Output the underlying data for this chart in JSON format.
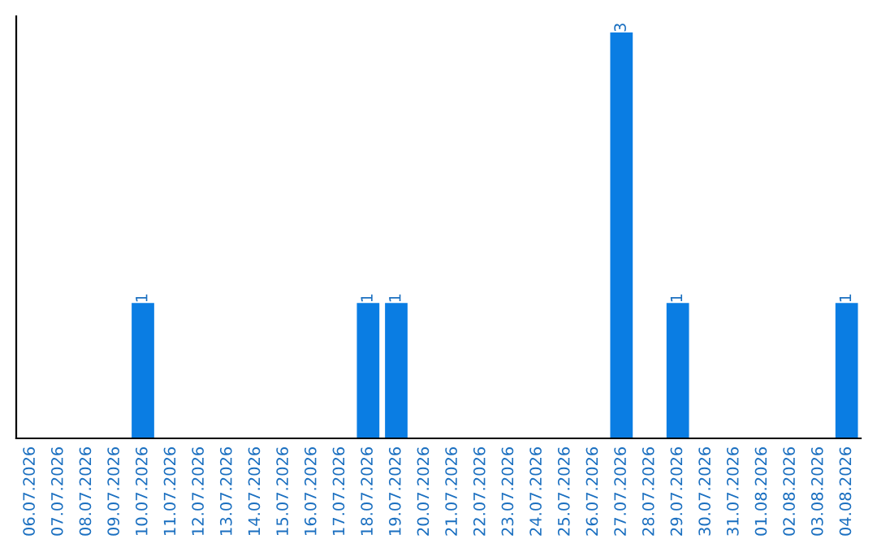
{
  "chart_data": {
    "type": "bar",
    "categories": [
      "06.07.2026",
      "07.07.2026",
      "08.07.2026",
      "09.07.2026",
      "10.07.2026",
      "11.07.2026",
      "12.07.2026",
      "13.07.2026",
      "14.07.2026",
      "15.07.2026",
      "16.07.2026",
      "17.07.2026",
      "18.07.2026",
      "19.07.2026",
      "20.07.2026",
      "21.07.2026",
      "22.07.2026",
      "23.07.2026",
      "24.07.2026",
      "25.07.2026",
      "26.07.2026",
      "27.07.2026",
      "28.07.2026",
      "29.07.2026",
      "30.07.2026",
      "31.07.2026",
      "01.08.2026",
      "02.08.2026",
      "03.08.2026",
      "04.08.2026"
    ],
    "values": [
      0,
      0,
      0,
      0,
      1,
      0,
      0,
      0,
      0,
      0,
      0,
      0,
      1,
      1,
      0,
      0,
      0,
      0,
      0,
      0,
      0,
      3,
      0,
      1,
      0,
      0,
      0,
      0,
      0,
      1
    ],
    "value_labels": [
      null,
      null,
      null,
      null,
      "1",
      null,
      null,
      null,
      null,
      null,
      null,
      null,
      "1",
      "1",
      null,
      null,
      null,
      null,
      null,
      null,
      null,
      "3",
      null,
      "1",
      null,
      null,
      null,
      null,
      null,
      "1"
    ],
    "color": "#0a7de3",
    "tick_labels": "x",
    "grid": false,
    "legend": false
  }
}
